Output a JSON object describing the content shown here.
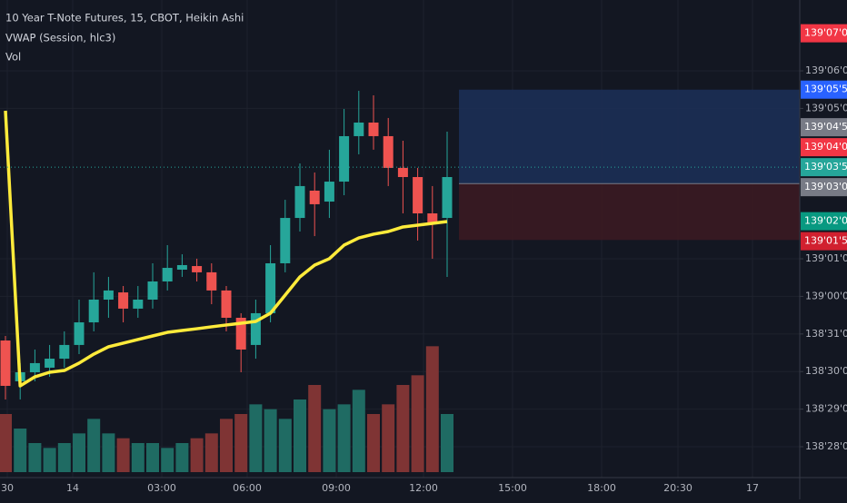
{
  "chart_data": [
    {
      "type": "candlestick",
      "title": "10 Year T-Note Futures, 15, CBOT, Heikin Ashi",
      "open": [
        138.9633,
        138.9294,
        138.9369,
        138.9407,
        138.9482,
        138.9596,
        138.9784,
        138.9973,
        139.0033,
        138.9898,
        138.9973,
        139.0124,
        139.0222,
        139.0252,
        139.02,
        139.0049,
        138.9822,
        138.9596,
        138.986,
        139.0275,
        139.0652,
        139.0879,
        139.0788,
        139.0954,
        139.1332,
        139.1445,
        139.1332,
        139.1068,
        139.0992,
        139.069,
        139.0652
      ],
      "high": [
        138.9671,
        138.9445,
        138.9558,
        138.9596,
        138.9709,
        138.9973,
        139.02,
        139.0162,
        139.0086,
        139.0086,
        139.0275,
        139.0426,
        139.035,
        139.0313,
        139.0275,
        139.0086,
        138.986,
        138.9973,
        139.0426,
        139.0803,
        139.1105,
        139.103,
        139.1219,
        139.1558,
        139.1709,
        139.1671,
        139.1483,
        139.1294,
        139.1068,
        139.0917,
        139.1369
      ],
      "low": [
        138.9143,
        138.9143,
        138.9294,
        138.9331,
        138.9407,
        138.952,
        138.9709,
        138.9822,
        138.9784,
        138.9822,
        138.9898,
        139.0049,
        139.0162,
        139.0124,
        138.9935,
        138.9709,
        138.9369,
        138.9482,
        138.9784,
        139.02,
        139.0539,
        139.0501,
        139.0652,
        139.0841,
        139.1181,
        139.1219,
        139.0917,
        139.069,
        139.0464,
        139.0313,
        139.0162
      ],
      "close": [
        138.9256,
        138.9369,
        138.9445,
        138.9482,
        138.9596,
        138.9784,
        138.9973,
        139.0049,
        138.9898,
        138.9973,
        139.0124,
        139.0237,
        139.026,
        139.02,
        139.0049,
        138.9822,
        138.9558,
        138.986,
        139.0275,
        139.0652,
        139.0917,
        139.0766,
        139.0954,
        139.1332,
        139.1445,
        139.1332,
        139.1068,
        139.0992,
        139.069,
        139.0615,
        139.0992
      ],
      "up_color": "#26a69a",
      "down_color": "#ef5350",
      "overlay": {
        "type": "line",
        "name": "VWAP (Session, hlc3)",
        "color": "#ffeb3b",
        "values": [
          139.1543,
          138.9256,
          138.9331,
          138.9369,
          138.9384,
          138.9445,
          138.952,
          138.9581,
          138.9611,
          138.9641,
          138.9671,
          138.9701,
          138.9716,
          138.9731,
          138.9747,
          138.9762,
          138.9777,
          138.9792,
          138.986,
          139.0011,
          139.0162,
          139.026,
          139.0313,
          139.0426,
          139.0486,
          139.0517,
          139.0539,
          139.0577,
          139.0592,
          139.0607,
          139.0622
        ]
      },
      "position": {
        "target": 139.171875,
        "entry": 139.09375,
        "stop": 139.046875,
        "profit_color": "#1c2f55",
        "loss_color": "#3b1a22"
      },
      "ylim": [
        138.8501,
        139.2464
      ],
      "yticks": [
        {
          "value": 138.875,
          "label": "138'28'0"
        },
        {
          "value": 138.90625,
          "label": "138'29'0"
        },
        {
          "value": 138.9375,
          "label": "138'30'0"
        },
        {
          "value": 138.96875,
          "label": "138'31'0"
        },
        {
          "value": 139.0,
          "label": "139'00'0"
        },
        {
          "value": 139.03125,
          "label": "139'01'0"
        },
        {
          "value": 139.15625,
          "label": "139'05'0"
        },
        {
          "value": 139.1875,
          "label": "139'06'0"
        }
      ],
      "price_markers": [
        {
          "value": 139.21875,
          "label": "139'07'0",
          "color": "#f23645"
        },
        {
          "value": 139.171875,
          "label": "139'05'5",
          "color": "#2962ff"
        },
        {
          "value": 139.140625,
          "label": "139'04'5",
          "color": "#787b86"
        },
        {
          "value": 139.125,
          "label": "139'04'0",
          "color": "#f23645"
        },
        {
          "value": 139.109375,
          "label": "139'03'5",
          "color": "#26a69a"
        },
        {
          "value": 139.09375,
          "label": "139'03'0",
          "color": "#787b86"
        },
        {
          "value": 139.0625,
          "label": "139'02'0",
          "color": "#089981"
        },
        {
          "value": 139.046875,
          "label": "139'01'5",
          "color": "#d1202f"
        }
      ],
      "xticks": [
        "30",
        "14",
        "03:00",
        "06:00",
        "09:00",
        "12:00",
        "15:00",
        "18:00",
        "20:30",
        "17"
      ],
      "grid": true
    },
    {
      "type": "bar",
      "name": "Vol",
      "values": [
        60,
        45,
        30,
        25,
        30,
        40,
        55,
        40,
        35,
        30,
        30,
        25,
        30,
        35,
        40,
        55,
        60,
        70,
        65,
        55,
        75,
        90,
        65,
        70,
        85,
        60,
        70,
        90,
        100,
        130,
        60
      ],
      "up_color": "#1f6b63",
      "down_color": "#7f3434",
      "ylim": [
        0,
        150
      ]
    }
  ]
}
